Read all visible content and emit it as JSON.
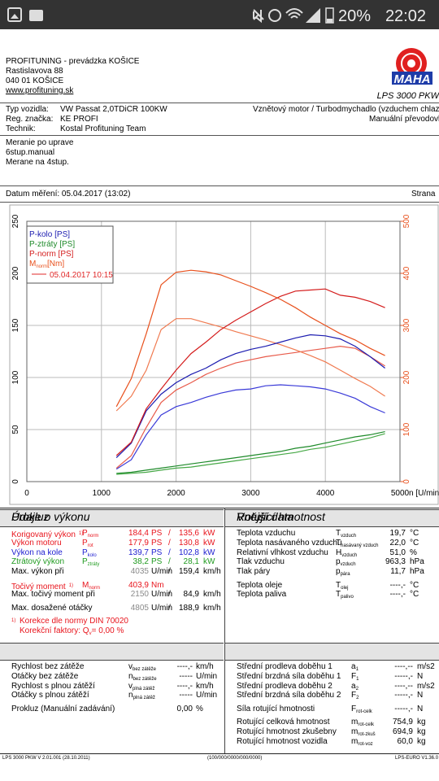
{
  "status": {
    "battery": "20%",
    "time": "22:02"
  },
  "header": {
    "lines": [
      "PROFITUNING - prevádzka KOŠICE",
      "Rastislavova 88",
      "040 01 KOŠICE",
      "www.profituning.sk"
    ],
    "logo": "MAHA",
    "model": "LPS 3000 PKW"
  },
  "vehicle": {
    "rows": [
      [
        "Typ vozidla:",
        "VW Passat 2,0TDiCR 100KW"
      ],
      [
        "Reg. značka:",
        "KE PROFI"
      ],
      [
        "Technik:",
        "Kostal Profituning Team"
      ]
    ],
    "right": [
      "Vznětový motor / Turbodmychadlo (vzduchem chlazene)",
      "Manuální převodovka"
    ]
  },
  "notes": [
    "Meranie po uprave",
    "6stup.manual",
    "Merane na 4stup."
  ],
  "date": {
    "text": "Datum měření: 05.04.2017 (13:02)",
    "page": "Strana"
  },
  "chart_data": {
    "type": "line",
    "legend_position": "upper left",
    "grid": true,
    "x": [
      1200,
      1400,
      1600,
      1800,
      2000,
      2200,
      2400,
      2600,
      2800,
      3000,
      3200,
      3400,
      3600,
      3800,
      4000,
      4200,
      4400,
      4600,
      4800
    ],
    "xlim": [
      0,
      5000
    ],
    "xticks": [
      0,
      1000,
      2000,
      3000,
      4000,
      5000
    ],
    "xlabel": "n [U/min]",
    "ylim": [
      0,
      250
    ],
    "yticks": [
      0,
      50,
      100,
      150,
      200,
      250
    ],
    "y2lim": [
      0,
      500
    ],
    "y2ticks": [
      0,
      100,
      200,
      300,
      400,
      500
    ],
    "y2color": "#e8501c",
    "series": [
      {
        "name": "P-kolo [PS]",
        "color": "#1c1cb0",
        "values": [
          23,
          37,
          68,
          84,
          95,
          103,
          109,
          117,
          123,
          127,
          130,
          134,
          138,
          141,
          140,
          137,
          130,
          120,
          109
        ]
      },
      {
        "name": "P-ztráty [PS]",
        "color": "#1e8a2a",
        "values": [
          8,
          9,
          11,
          13,
          15,
          17,
          19,
          21,
          23,
          25,
          27,
          29,
          32,
          34,
          37,
          40,
          43,
          45,
          48
        ]
      },
      {
        "name": "P-norm [PS]",
        "color": "#d41c1c",
        "values": [
          25,
          38,
          70,
          89,
          107,
          123,
          134,
          146,
          155,
          163,
          171,
          178,
          183,
          184,
          185,
          179,
          177,
          173,
          167
        ]
      },
      {
        "name": "M",
        "name_sub": "norm",
        "name_unit": "[Nm]",
        "color": "#e8501c",
        "axis": "y2",
        "values": [
          144,
          198,
          284,
          378,
          402,
          406,
          403,
          397,
          386,
          375,
          363,
          350,
          334,
          316,
          300,
          284,
          272,
          256,
          242
        ]
      }
    ],
    "comparison": {
      "label": "05.04.2017 10:15",
      "color": "#e02828",
      "series": [
        {
          "color": "#3a3ad8",
          "values": [
            12,
            21,
            45,
            64,
            72,
            76,
            81,
            85,
            88,
            89,
            92,
            93,
            92,
            91,
            89,
            85,
            80,
            72,
            66
          ]
        },
        {
          "color": "#46a846",
          "values": [
            7,
            8,
            9,
            11,
            13,
            14,
            16,
            18,
            20,
            22,
            24,
            26,
            28,
            31,
            33,
            36,
            39,
            42,
            46
          ]
        },
        {
          "color": "#e85a4a",
          "values": [
            13,
            25,
            52,
            76,
            88,
            95,
            103,
            109,
            114,
            117,
            120,
            122,
            124,
            126,
            128,
            130,
            128,
            120,
            111
          ]
        },
        {
          "color": "#f07a50",
          "axis": "y2",
          "values": [
            136,
            164,
            214,
            292,
            313,
            313,
            305,
            297,
            288,
            280,
            272,
            263,
            253,
            242,
            230,
            214,
            198,
            183,
            164
          ]
        }
      ]
    }
  },
  "performance": {
    "title": "Údaje o výkonu",
    "groups": [
      [
        {
          "label": "Korigovaný výkon",
          "mark": "1)",
          "sym": "P",
          "sub": "norm",
          "value": "184,4",
          "unit": "PS",
          "sep": "/",
          "value2": "135,6",
          "unit2": "kW",
          "color": "#e8141c"
        },
        {
          "label": "Výkon motoru",
          "sym": "P",
          "sub": "rot",
          "value": "177,9",
          "unit": "PS",
          "sep": "/",
          "value2": "130,8",
          "unit2": "kW",
          "color": "#e8141c"
        },
        {
          "label": "Výkon na kole",
          "sym": "P",
          "sub": "kolo",
          "value": "139,7",
          "unit": "PS",
          "sep": "/",
          "value2": "102,8",
          "unit2": "kW",
          "color": "#1c1cd0"
        },
        {
          "label": "Ztrátový výkon",
          "sym": "P",
          "sub": "ztráty",
          "value": "38,2",
          "unit": "PS",
          "sep": "/",
          "value2": "28,1",
          "unit2": "kW",
          "color": "#1e9a1e"
        },
        {
          "label": "Max. výkon při",
          "value": "4035",
          "value_color": "#8a8a8a",
          "unit": "U/min",
          "sep": "/",
          "value2": "159,4",
          "unit2": "km/h",
          "color": "#000000"
        }
      ],
      [
        {
          "label": "Točivý moment",
          "mark": "1)",
          "sym": "M",
          "sub": "norm",
          "value": "403,9",
          "unit": "Nm",
          "color": "#e8141c"
        },
        {
          "label": "Max. točivý moment při",
          "value": "2150",
          "value_color": "#8a8a8a",
          "unit": "U/min",
          "sep": "/",
          "value2": "84,9",
          "unit2": "km/h",
          "color": "#000000"
        }
      ],
      [
        {
          "label": "Max. dosažené otáčky",
          "value": "4805",
          "value_color": "#8a8a8a",
          "unit": "U/min",
          "sep": "/",
          "value2": "188,9",
          "unit2": "km/h",
          "color": "#000000"
        }
      ]
    ],
    "notes": [
      {
        "mark": "1)",
        "text": "Korekce dle normy DIN 70020"
      },
      {
        "text": "Korekční faktory: Q",
        "sub": "v",
        "rest": "=   0,00 %"
      }
    ]
  },
  "external": {
    "title": "Vnější data",
    "groups": [
      [
        {
          "label": "Teplota vzduchu",
          "sym": "T",
          "sub": "vzduch",
          "value": "19,7",
          "unit": "°C"
        },
        {
          "label": "Teplota nasávaného vzduchu",
          "sym": "T",
          "sub": "nasávaný vzduch",
          "value": "22,0",
          "unit": "°C"
        },
        {
          "label": "Relativní vlhkost vzduchu",
          "sym": "H",
          "sub": "vzduch",
          "value": "51,0",
          "unit": "%"
        },
        {
          "label": "Tlak vzduchu",
          "sym": "p",
          "sub": "vzduch",
          "value": "963,3",
          "unit": "hPa"
        },
        {
          "label": "Tlak páry",
          "sym": "p",
          "sub": "pára",
          "value": "11,7",
          "unit": "hPa"
        }
      ],
      [
        {
          "label": "Teplota oleje",
          "sym": "T",
          "sub": "olej",
          "value": "----,-",
          "unit": "°C"
        },
        {
          "label": "Teplota paliva",
          "sym": "T",
          "sub": "palivo",
          "value": "----,-",
          "unit": "°C"
        }
      ]
    ]
  },
  "slip": {
    "title": "Prokluz",
    "groups": [
      [
        {
          "label": "Rychlost bez zátěže",
          "sym": "v",
          "sub": "bez zátěže",
          "value": "----,-",
          "unit": "km/h"
        },
        {
          "label": "Otáčky bez zátěže",
          "sym": "n",
          "sub": "bez zátěže",
          "value": "-----",
          "unit": "U/min"
        },
        {
          "label": "Rychlost s plnou zátěží",
          "sym": "v",
          "sub": "plná zátěž",
          "value": "----,-",
          "unit": "km/h"
        },
        {
          "label": "Otáčky s plnou zátěží",
          "sym": "n",
          "sub": "plná zátěž",
          "value": "-----",
          "unit": "U/min"
        }
      ],
      [
        {
          "label": "Prokluz (Manuální zadávání)",
          "value": "0,00",
          "unit": "%"
        }
      ]
    ]
  },
  "rotating": {
    "title": "Rotující hmotnost",
    "groups": [
      [
        {
          "label": "Střední prodleva doběhu 1",
          "sym": "a",
          "sub": "1",
          "value": "----,--",
          "unit": "m/s2"
        },
        {
          "label": "Střední brzdná síla doběhu 1",
          "sym": "F",
          "sub": "1",
          "value": "-----,-",
          "unit": "N"
        },
        {
          "label": "Střední prodleva doběhu 2",
          "sym": "a",
          "sub": "2",
          "value": "----,--",
          "unit": "m/s2"
        },
        {
          "label": "Střední brzdná síla doběhu 2",
          "sym": "F",
          "sub": "2",
          "value": "-----,-",
          "unit": "N"
        }
      ],
      [
        {
          "label": "Síla rotující hmotnosti",
          "sym": "F",
          "sub": "rot-celk",
          "value": "-----,-",
          "unit": "N"
        }
      ],
      [
        {
          "label": "Rotující celková hmotnost",
          "sym": "m",
          "sub": "rot-celk",
          "value": "754,9",
          "unit": "kg"
        },
        {
          "label": "Rotující hmotnost zkušebny",
          "sym": "m",
          "sub": "rot-zkuš",
          "value": "694,9",
          "unit": "kg"
        },
        {
          "label": "Rotující hmotnost vozidla",
          "sym": "m",
          "sub": "rot-voz",
          "value": "60,0",
          "unit": "kg"
        }
      ]
    ]
  },
  "footer": [
    "LPS 3000 PKW V 2.01.001 (28.10.2011)",
    "(100/000/0000/000/0000)",
    "LPS-EURO V1.36.0"
  ]
}
